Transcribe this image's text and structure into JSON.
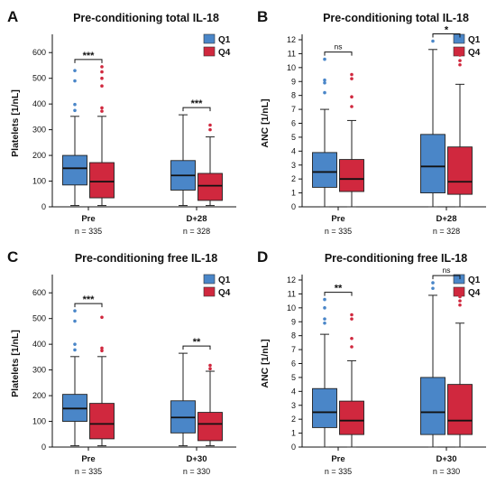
{
  "colors": {
    "q1": "#4a86c8",
    "q4": "#d0283e",
    "axis": "#111111"
  },
  "chart_data": [
    {
      "type": "box",
      "panel_letter": "A",
      "title": "Pre-conditioning total IL-18",
      "ylabel": "Platelets [1/nL]",
      "ylim": [
        0,
        650
      ],
      "yticks": [
        0,
        100,
        200,
        300,
        400,
        500,
        600
      ],
      "legend": [
        "Q1",
        "Q4"
      ],
      "legend_position": "top-right",
      "categories": [
        {
          "label": "Pre",
          "n_label": "n = 335",
          "significance": "***",
          "boxes": [
            {
              "series": "Q1",
              "whisker_low": 5,
              "q1": 85,
              "median": 150,
              "q3": 200,
              "whisker_high": 352,
              "outliers": [
                375,
                398,
                490,
                530
              ]
            },
            {
              "series": "Q4",
              "whisker_low": 5,
              "q1": 35,
              "median": 98,
              "q3": 172,
              "whisker_high": 352,
              "outliers": [
                372,
                385,
                470,
                500,
                525,
                545
              ]
            }
          ]
        },
        {
          "label": "D+28",
          "n_label": "n = 328",
          "significance": "***",
          "boxes": [
            {
              "series": "Q1",
              "whisker_low": 5,
              "q1": 65,
              "median": 122,
              "q3": 180,
              "whisker_high": 358,
              "outliers": []
            },
            {
              "series": "Q4",
              "whisker_low": 5,
              "q1": 25,
              "median": 82,
              "q3": 130,
              "whisker_high": 272,
              "outliers": [
                300,
                318
              ]
            }
          ]
        }
      ]
    },
    {
      "type": "box",
      "panel_letter": "B",
      "title": "Pre-conditioning total IL-18",
      "ylabel": "ANC [1/nL]",
      "ylim": [
        0,
        12
      ],
      "yticks": [
        0,
        1,
        2,
        3,
        4,
        5,
        6,
        7,
        8,
        9,
        10,
        11,
        12
      ],
      "legend": [
        "Q1",
        "Q4"
      ],
      "legend_position": "top-right",
      "categories": [
        {
          "label": "Pre",
          "n_label": "n = 335",
          "significance": "ns",
          "boxes": [
            {
              "series": "Q1",
              "whisker_low": 0,
              "q1": 1.4,
              "median": 2.5,
              "q3": 3.9,
              "whisker_high": 7.0,
              "outliers": [
                8.2,
                8.9,
                9.1,
                10.6
              ]
            },
            {
              "series": "Q4",
              "whisker_low": 0,
              "q1": 1.1,
              "median": 2.0,
              "q3": 3.4,
              "whisker_high": 6.2,
              "outliers": [
                7.2,
                7.9,
                9.2,
                9.5
              ]
            }
          ]
        },
        {
          "label": "D+28",
          "n_label": "n = 328",
          "significance": "*",
          "boxes": [
            {
              "series": "Q1",
              "whisker_low": 0,
              "q1": 1.0,
              "median": 2.9,
              "q3": 5.2,
              "whisker_high": 11.3,
              "outliers": [
                11.9
              ]
            },
            {
              "series": "Q4",
              "whisker_low": 0,
              "q1": 0.9,
              "median": 1.8,
              "q3": 4.3,
              "whisker_high": 8.8,
              "outliers": [
                10.2,
                10.5,
                10.9
              ]
            }
          ]
        }
      ]
    },
    {
      "type": "box",
      "panel_letter": "C",
      "title": "Pre-conditioning free IL-18",
      "ylabel": "Platelets [1/nL]",
      "ylim": [
        0,
        650
      ],
      "yticks": [
        0,
        100,
        200,
        300,
        400,
        500,
        600
      ],
      "legend": [
        "Q1",
        "Q4"
      ],
      "legend_position": "top-right",
      "categories": [
        {
          "label": "Pre",
          "n_label": "n = 335",
          "significance": "***",
          "boxes": [
            {
              "series": "Q1",
              "whisker_low": 5,
              "q1": 100,
              "median": 150,
              "q3": 205,
              "whisker_high": 352,
              "outliers": [
                378,
                400,
                490,
                530
              ]
            },
            {
              "series": "Q4",
              "whisker_low": 5,
              "q1": 32,
              "median": 90,
              "q3": 170,
              "whisker_high": 352,
              "outliers": [
                375,
                385,
                505
              ]
            }
          ]
        },
        {
          "label": "D+30",
          "n_label": "n = 330",
          "significance": "**",
          "boxes": [
            {
              "series": "Q1",
              "whisker_low": 5,
              "q1": 55,
              "median": 115,
              "q3": 180,
              "whisker_high": 365,
              "outliers": []
            },
            {
              "series": "Q4",
              "whisker_low": 5,
              "q1": 25,
              "median": 90,
              "q3": 135,
              "whisker_high": 295,
              "outliers": [
                305,
                318
              ]
            }
          ]
        }
      ]
    },
    {
      "type": "box",
      "panel_letter": "D",
      "title": "Pre-conditioning free IL-18",
      "ylabel": "ANC [1/nL]",
      "ylim": [
        0,
        12
      ],
      "yticks": [
        0,
        1,
        2,
        3,
        4,
        5,
        6,
        7,
        8,
        9,
        10,
        11,
        12
      ],
      "legend": [
        "Q1",
        "Q4"
      ],
      "legend_position": "top-right",
      "categories": [
        {
          "label": "Pre",
          "n_label": "n = 335",
          "significance": "**",
          "boxes": [
            {
              "series": "Q1",
              "whisker_low": 0,
              "q1": 1.4,
              "median": 2.5,
              "q3": 4.2,
              "whisker_high": 8.1,
              "outliers": [
                8.9,
                9.2,
                10.0,
                10.6
              ]
            },
            {
              "series": "Q4",
              "whisker_low": 0,
              "q1": 0.9,
              "median": 1.9,
              "q3": 3.3,
              "whisker_high": 6.2,
              "outliers": [
                7.2,
                7.8,
                9.2,
                9.5
              ]
            }
          ]
        },
        {
          "label": "D+30",
          "n_label": "n = 330",
          "significance": "ns",
          "boxes": [
            {
              "series": "Q1",
              "whisker_low": 0,
              "q1": 0.9,
              "median": 2.5,
              "q3": 5.0,
              "whisker_high": 10.9,
              "outliers": [
                11.4,
                11.8
              ]
            },
            {
              "series": "Q4",
              "whisker_low": 0,
              "q1": 0.9,
              "median": 1.9,
              "q3": 4.5,
              "whisker_high": 8.9,
              "outliers": [
                10.2,
                10.5,
                10.8
              ]
            }
          ]
        }
      ]
    }
  ]
}
